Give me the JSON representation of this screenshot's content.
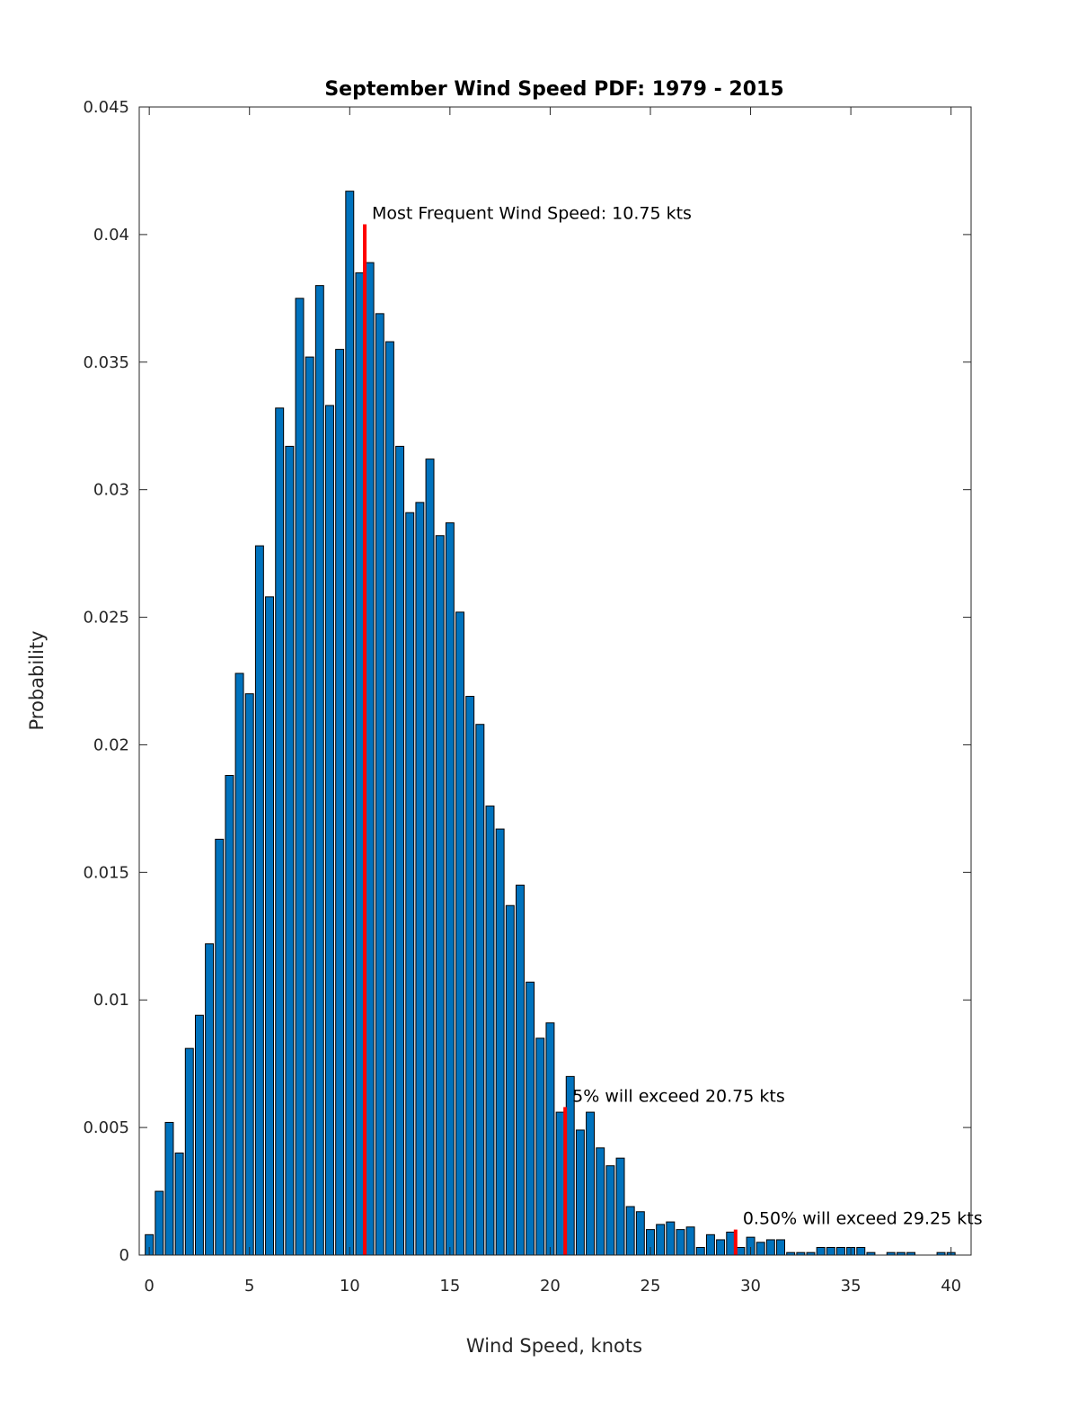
{
  "chart_data": {
    "type": "bar",
    "title": "September Wind Speed PDF: 1979 - 2015",
    "xlabel": "Wind Speed, knots",
    "ylabel": "Probability",
    "xlim": [
      -0.5,
      41
    ],
    "ylim": [
      0,
      0.045
    ],
    "xticks": [
      0,
      5,
      10,
      15,
      20,
      25,
      30,
      35,
      40
    ],
    "xtick_labels": [
      "0",
      "5",
      "10",
      "15",
      "20",
      "25",
      "30",
      "35",
      "40"
    ],
    "yticks": [
      0,
      0.005,
      0.01,
      0.015,
      0.02,
      0.025,
      0.03,
      0.035,
      0.04,
      0.045
    ],
    "ytick_labels": [
      "0",
      "0.005",
      "0.01",
      "0.015",
      "0.02",
      "0.025",
      "0.03",
      "0.035",
      "0.04",
      "0.045"
    ],
    "bar_color": "#0072BD",
    "bar_edge_color": "#000000",
    "marker_color": "#FF0000",
    "grid": false,
    "x": [
      0,
      0.5,
      1,
      1.5,
      2,
      2.5,
      3,
      3.5,
      4,
      4.5,
      5,
      5.5,
      6,
      6.5,
      7,
      7.5,
      8,
      8.5,
      9,
      9.5,
      10,
      10.5,
      11,
      11.5,
      12,
      12.5,
      13,
      13.5,
      14,
      14.5,
      15,
      15.5,
      16,
      16.5,
      17,
      17.5,
      18,
      18.5,
      19,
      19.5,
      20,
      20.5,
      21,
      21.5,
      22,
      22.5,
      23,
      23.5,
      24,
      24.5,
      25,
      25.5,
      26,
      26.5,
      27,
      27.5,
      28,
      28.5,
      29,
      29.5,
      30,
      30.5,
      31,
      31.5,
      32,
      32.5,
      33,
      33.5,
      34,
      34.5,
      35,
      35.5,
      36,
      36.5,
      37,
      37.5,
      38,
      38.5,
      39,
      39.5,
      40
    ],
    "values": [
      0.0008,
      0.0025,
      0.0052,
      0.004,
      0.0081,
      0.0094,
      0.0122,
      0.0163,
      0.0188,
      0.0228,
      0.022,
      0.0278,
      0.0258,
      0.0332,
      0.0317,
      0.0375,
      0.0352,
      0.038,
      0.0333,
      0.0355,
      0.0417,
      0.0385,
      0.0389,
      0.0369,
      0.0358,
      0.0317,
      0.0291,
      0.0295,
      0.0312,
      0.0282,
      0.0287,
      0.0252,
      0.0219,
      0.0208,
      0.0176,
      0.0167,
      0.0137,
      0.0145,
      0.0107,
      0.0085,
      0.0091,
      0.0056,
      0.007,
      0.0049,
      0.0056,
      0.0042,
      0.0035,
      0.0038,
      0.0019,
      0.0017,
      0.001,
      0.0012,
      0.0013,
      0.001,
      0.0011,
      0.0003,
      0.0008,
      0.0006,
      0.0009,
      0.0003,
      0.0007,
      0.0005,
      0.0006,
      0.0006,
      0.0001,
      0.0001,
      0.0001,
      0.0003,
      0.0003,
      0.0003,
      0.0003,
      0.0003,
      0.0001,
      0,
      0.0001,
      0.0001,
      0.0001,
      0,
      0,
      0.0001,
      0.0001
    ],
    "markers": [
      {
        "x": 10.75,
        "y": 0.0404,
        "label": "Most Frequent Wind Speed: 10.75 kts"
      },
      {
        "x": 20.75,
        "y": 0.0058,
        "label": "5% will exceed 20.75 kts"
      },
      {
        "x": 29.25,
        "y": 0.001,
        "label": "0.50% will exceed 29.25 kts"
      }
    ]
  }
}
